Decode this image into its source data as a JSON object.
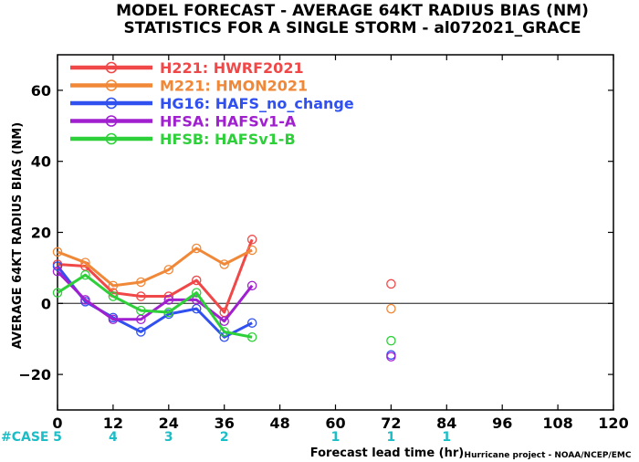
{
  "chart_data": {
    "type": "line",
    "title": "MODEL FORECAST - AVERAGE 64KT RADIUS BIAS (NM)",
    "subtitle": "STATISTICS FOR A SINGLE STORM - al072021_GRACE",
    "xlabel": "Forecast lead time (hr)",
    "ylabel": "AVERAGE 64KT RADIUS BIAS (NM)",
    "xlim": [
      0,
      120
    ],
    "ylim": [
      -30,
      70
    ],
    "xticks": [
      0,
      12,
      24,
      36,
      48,
      60,
      72,
      84,
      96,
      108,
      120
    ],
    "yticks": [
      -20,
      0,
      20,
      40,
      60
    ],
    "zero_line": true,
    "legend_placement": "top-left",
    "series": [
      {
        "name": "H221:  HWRF2021",
        "color": "#f04848",
        "x": [
          0,
          6,
          12,
          18,
          24,
          30,
          36,
          42,
          72
        ],
        "y": [
          11,
          10.5,
          3,
          2,
          2,
          6.5,
          -2.5,
          18,
          5.5
        ]
      },
      {
        "name": "M221:  HMON2021",
        "color": "#f08838",
        "x": [
          0,
          6,
          12,
          18,
          24,
          30,
          36,
          42,
          72
        ],
        "y": [
          14.5,
          11.5,
          5,
          6,
          9.5,
          15.5,
          11,
          15,
          -1.5
        ]
      },
      {
        "name": "HG16:  HAFS_no_change",
        "color": "#3050f0",
        "x": [
          0,
          6,
          12,
          18,
          24,
          30,
          36,
          42,
          72
        ],
        "y": [
          10.5,
          0.5,
          -4,
          -8,
          -3,
          -1.5,
          -9.5,
          -5.5,
          -14.5
        ]
      },
      {
        "name": "HFSA:  HAFSv1-A",
        "color": "#a020d0",
        "x": [
          0,
          6,
          12,
          18,
          24,
          30,
          36,
          42,
          72
        ],
        "y": [
          9,
          1,
          -4.5,
          -4.5,
          1,
          1,
          -5,
          5,
          -15
        ]
      },
      {
        "name": "HFSB:  HAFSv1-B",
        "color": "#2ed03a",
        "x": [
          0,
          6,
          12,
          18,
          24,
          30,
          36,
          42,
          72
        ],
        "y": [
          3,
          8,
          2,
          -2,
          -2.5,
          3,
          -8,
          -9.5,
          -10.5
        ]
      }
    ],
    "cases_label": "#CASE",
    "cases": [
      {
        "x": 0,
        "n": "5"
      },
      {
        "x": 12,
        "n": "4"
      },
      {
        "x": 24,
        "n": "3"
      },
      {
        "x": 36,
        "n": "2"
      },
      {
        "x": 60,
        "n": "1"
      },
      {
        "x": 72,
        "n": "1"
      },
      {
        "x": 84,
        "n": "1"
      }
    ],
    "cases_color": "#1bbdc6",
    "credit": "Hurricane project - NOAA/NCEP/EMC"
  }
}
